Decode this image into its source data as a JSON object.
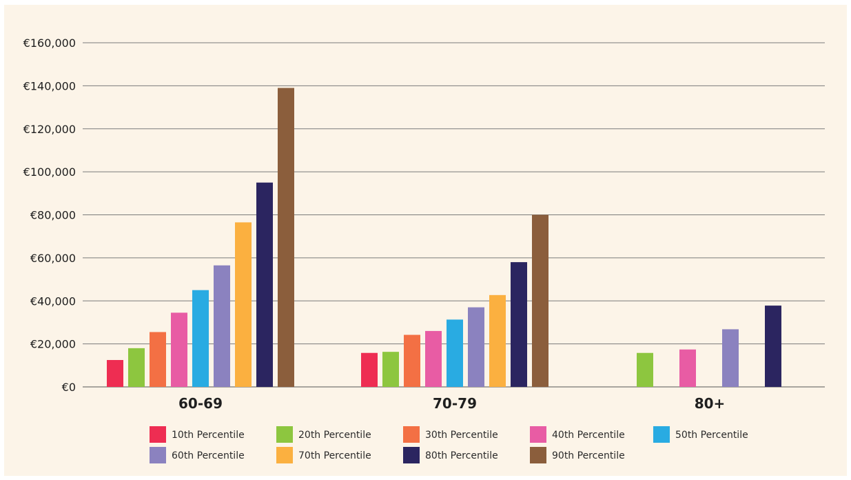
{
  "chart_data": {
    "type": "bar",
    "title": "",
    "xlabel": "",
    "ylabel": "",
    "ylim": [
      0,
      160000
    ],
    "y_ticks": [
      0,
      20000,
      40000,
      60000,
      80000,
      100000,
      120000,
      140000,
      160000
    ],
    "y_tick_labels": [
      "€0",
      "€20,000",
      "€40,000",
      "€60,000",
      "€80,000",
      "€100,000",
      "€120,000",
      "€140,000",
      "€160,000"
    ],
    "grid": true,
    "legend_position": "bottom",
    "categories": [
      "60-69",
      "70-79",
      "80+"
    ],
    "series": [
      {
        "name": "10th Percentile",
        "color": "#ee2d52",
        "values": [
          12500,
          15800,
          null
        ]
      },
      {
        "name": "20th Percentile",
        "color": "#8dc63f",
        "values": [
          18000,
          16300,
          15800
        ]
      },
      {
        "name": "30th Percentile",
        "color": "#f37044",
        "values": [
          25500,
          24200,
          null
        ]
      },
      {
        "name": "40th Percentile",
        "color": "#e85ca4",
        "values": [
          34500,
          26000,
          17400
        ]
      },
      {
        "name": "50th Percentile",
        "color": "#29abe2",
        "values": [
          45000,
          31300,
          null
        ]
      },
      {
        "name": "60th Percentile",
        "color": "#8b82bf",
        "values": [
          56500,
          37000,
          26800
        ]
      },
      {
        "name": "70th Percentile",
        "color": "#fbb040",
        "values": [
          76500,
          42700,
          null
        ]
      },
      {
        "name": "80th Percentile",
        "color": "#2b2560",
        "values": [
          95000,
          58000,
          37800
        ]
      },
      {
        "name": "90th Percentile",
        "color": "#8b5e3c",
        "values": [
          139000,
          80000,
          null
        ]
      }
    ]
  },
  "colors": {
    "background": "#fcf4e8",
    "grid": "#7a7a7a",
    "axis": "#555555"
  }
}
